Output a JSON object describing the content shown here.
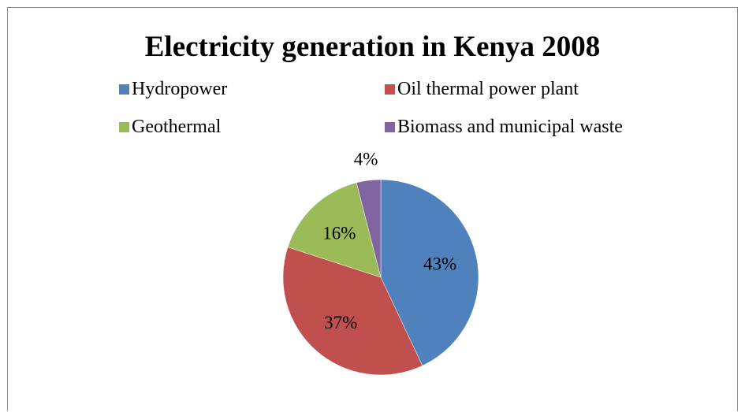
{
  "chart_data": {
    "type": "pie",
    "title": "Electricity generation in Kenya 2008",
    "legend_position": "top",
    "categories": [
      "Hydropower",
      "Oil thermal power plant",
      "Geothermal",
      "Biomass and municipal waste"
    ],
    "values": [
      43,
      37,
      16,
      4
    ],
    "value_labels": [
      "43%",
      "37%",
      "16%",
      "4%"
    ],
    "colors": [
      "#4f81bd",
      "#c0504d",
      "#9bbb59",
      "#8064a2"
    ]
  }
}
